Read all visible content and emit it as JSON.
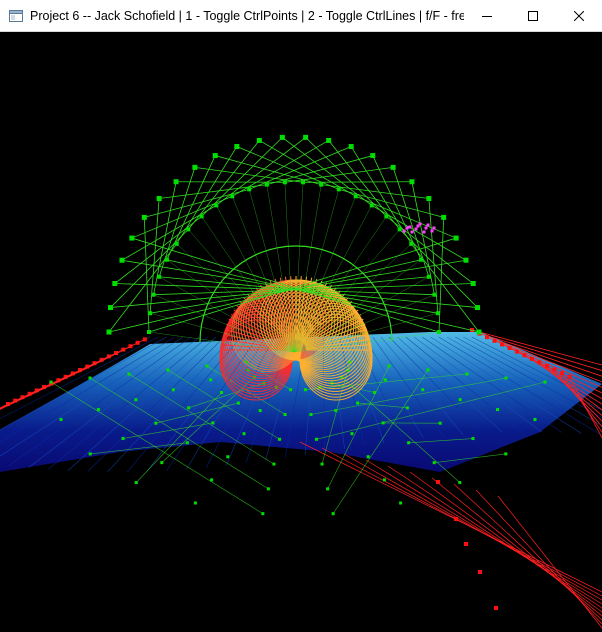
{
  "window": {
    "title": "Project 6 -- Jack Schofield | 1 - Toggle CtrlPoints | 2 - Toggle CtrlLines | f/F - freeze"
  },
  "icons": {
    "app": "application-window-icon",
    "minimize": "minimize-icon",
    "maximize": "maximize-icon",
    "close": "close-icon"
  },
  "scene": {
    "background": "#000000",
    "colors": {
      "control_points": "#00e000",
      "control_lines": "#33dd22",
      "surface_edge_points": "#ff1010",
      "surface_edge_lines": "#ff2020",
      "surface_far": "#5ad0ff",
      "surface_near": "#0a0a80",
      "arc_inner": "#ff2a2a",
      "arc_outer": "#ffb030",
      "magenta_blob": "#ff40ff"
    }
  }
}
